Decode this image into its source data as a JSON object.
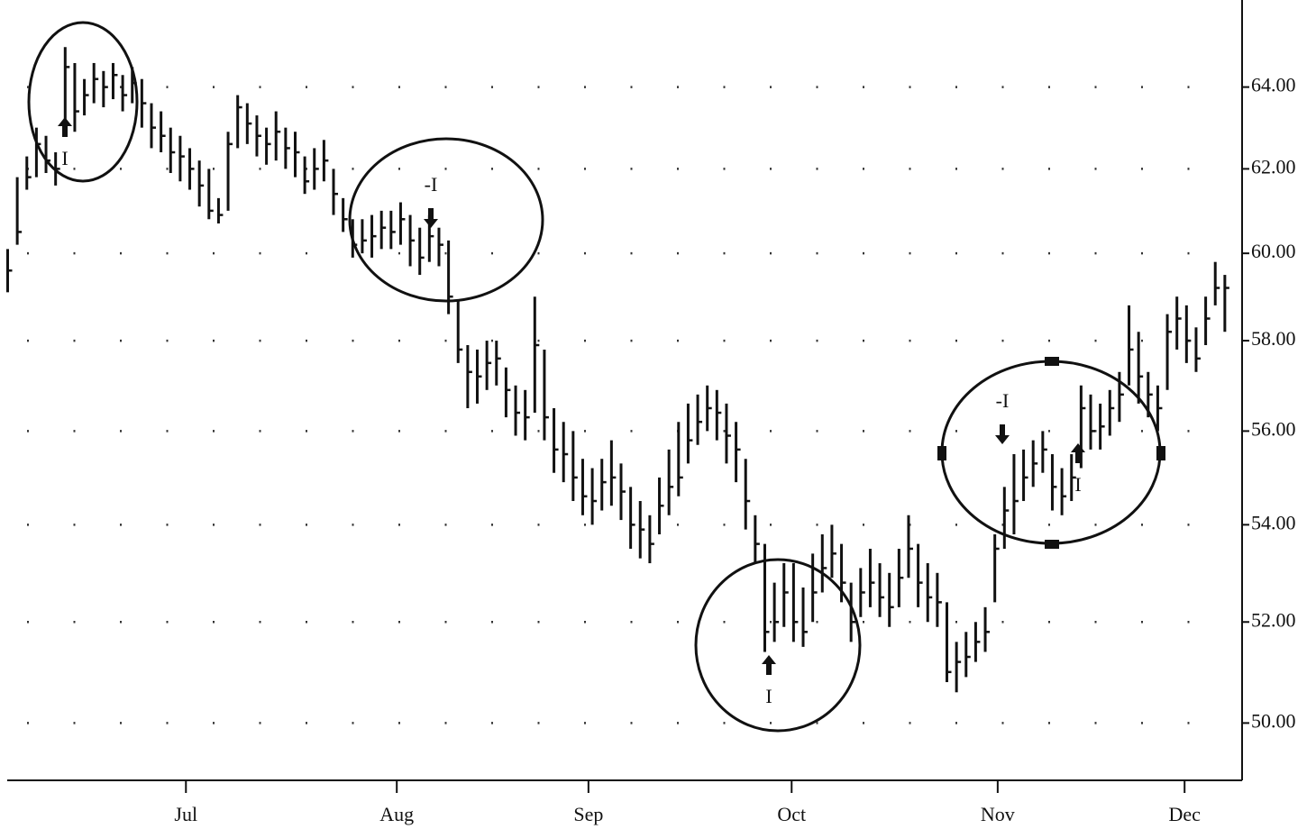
{
  "chart_data": {
    "type": "ohlc",
    "log_scale": true,
    "grid": "dotted",
    "color": "#111111",
    "ylim": [
      48.9,
      66.2
    ],
    "yticks": [
      {
        "value": 50,
        "label": "50.00"
      },
      {
        "value": 52,
        "label": "52.00"
      },
      {
        "value": 54,
        "label": "54.00"
      },
      {
        "value": 56,
        "label": "56.00"
      },
      {
        "value": 58,
        "label": "58.00"
      },
      {
        "value": 60,
        "label": "60.00"
      },
      {
        "value": 62,
        "label": "62.00"
      },
      {
        "value": 64,
        "label": "64.00"
      }
    ],
    "xlim": [
      -0.8,
      128.8
    ],
    "xticks": [
      {
        "value": 18.6,
        "label": "Jul"
      },
      {
        "value": 40.6,
        "label": "Aug"
      },
      {
        "value": 60.6,
        "label": "Sep"
      },
      {
        "value": 81.8,
        "label": "Oct"
      },
      {
        "value": 103.3,
        "label": "Nov"
      },
      {
        "value": 122.8,
        "label": "Dec"
      }
    ],
    "high": [
      60.1,
      61.8,
      62.3,
      63.0,
      62.8,
      62.4,
      65.0,
      64.6,
      64.2,
      64.6,
      64.4,
      64.6,
      64.3,
      64.5,
      64.2,
      63.6,
      63.4,
      63.0,
      62.8,
      62.5,
      62.2,
      62.0,
      61.3,
      62.9,
      63.8,
      63.6,
      63.3,
      63.0,
      63.4,
      63.0,
      62.9,
      62.3,
      62.5,
      62.7,
      62.0,
      61.3,
      60.8,
      60.8,
      60.9,
      61.0,
      61.0,
      61.2,
      60.9,
      60.6,
      60.9,
      60.6,
      60.3,
      58.9,
      57.9,
      57.8,
      58.0,
      58.0,
      57.4,
      57.0,
      56.9,
      59.0,
      57.8,
      56.5,
      56.2,
      56.0,
      55.4,
      55.2,
      55.4,
      55.8,
      55.3,
      54.8,
      54.5,
      54.2,
      55.0,
      55.6,
      56.2,
      56.6,
      56.8,
      57.0,
      56.9,
      56.6,
      56.2,
      55.4,
      54.2,
      53.6,
      52.8,
      53.2,
      53.2,
      52.7,
      53.4,
      53.8,
      54.0,
      53.6,
      52.8,
      53.1,
      53.5,
      53.2,
      53.0,
      53.5,
      54.2,
      53.6,
      53.2,
      53.0,
      52.4,
      51.6,
      51.8,
      52.0,
      52.3,
      53.8,
      54.8,
      55.5,
      55.6,
      55.8,
      56.0,
      55.5,
      55.2,
      55.5,
      57.0,
      56.8,
      56.6,
      56.9,
      57.3,
      58.8,
      58.2,
      57.3,
      57.0,
      58.6,
      59.0,
      58.8,
      58.3,
      59.0,
      59.8,
      59.5
    ],
    "low": [
      59.1,
      60.2,
      61.5,
      61.8,
      61.9,
      61.6,
      62.8,
      62.9,
      63.3,
      63.6,
      63.5,
      63.7,
      63.4,
      63.6,
      63.0,
      62.5,
      62.4,
      61.9,
      61.7,
      61.5,
      61.1,
      60.8,
      60.7,
      61.0,
      62.5,
      62.6,
      62.3,
      62.1,
      62.2,
      62.0,
      61.8,
      61.4,
      61.5,
      61.7,
      60.9,
      60.5,
      59.9,
      60.0,
      59.9,
      60.1,
      60.1,
      60.2,
      59.7,
      59.5,
      59.8,
      59.7,
      58.6,
      57.5,
      56.5,
      56.6,
      56.9,
      57.0,
      56.3,
      55.9,
      55.8,
      56.4,
      55.8,
      55.1,
      54.9,
      54.5,
      54.2,
      54.0,
      54.3,
      54.4,
      54.1,
      53.5,
      53.3,
      53.2,
      53.8,
      54.2,
      54.6,
      55.3,
      55.7,
      56.0,
      55.8,
      55.3,
      54.9,
      53.9,
      53.2,
      51.4,
      51.6,
      51.9,
      51.6,
      51.5,
      52.0,
      52.6,
      52.9,
      52.4,
      51.6,
      52.1,
      52.3,
      52.1,
      51.9,
      52.3,
      52.9,
      52.3,
      52.0,
      51.9,
      50.8,
      50.6,
      50.9,
      51.2,
      51.4,
      52.4,
      53.5,
      53.8,
      54.5,
      54.8,
      55.1,
      54.3,
      54.2,
      54.5,
      55.2,
      55.6,
      55.6,
      55.9,
      56.2,
      57.0,
      56.6,
      56.3,
      56.0,
      56.9,
      57.8,
      57.5,
      57.3,
      57.9,
      58.8,
      58.2
    ],
    "close": [
      59.6,
      60.5,
      61.8,
      62.6,
      62.2,
      62.0,
      64.5,
      63.4,
      63.8,
      64.2,
      64.0,
      64.3,
      63.8,
      64.1,
      63.6,
      63.0,
      62.8,
      62.4,
      62.3,
      62.0,
      61.6,
      61.0,
      60.9,
      62.6,
      63.5,
      63.1,
      62.8,
      62.6,
      62.9,
      62.5,
      62.4,
      61.7,
      62.0,
      62.2,
      61.4,
      60.8,
      60.2,
      60.3,
      60.4,
      60.6,
      60.5,
      60.8,
      60.3,
      59.9,
      60.4,
      60.2,
      59.0,
      57.8,
      57.3,
      57.2,
      57.5,
      57.6,
      56.9,
      56.4,
      56.3,
      57.9,
      56.3,
      55.6,
      55.5,
      55.0,
      54.6,
      54.5,
      54.9,
      55.0,
      54.7,
      54.0,
      53.9,
      53.6,
      54.4,
      54.8,
      55.0,
      55.8,
      56.2,
      56.5,
      56.4,
      55.9,
      55.6,
      54.5,
      53.6,
      51.8,
      52.0,
      52.6,
      52.0,
      51.8,
      52.6,
      53.1,
      53.4,
      52.8,
      52.0,
      52.6,
      52.8,
      52.5,
      52.3,
      52.9,
      53.5,
      52.8,
      52.5,
      52.4,
      51.0,
      51.2,
      51.3,
      51.6,
      51.8,
      53.5,
      54.3,
      54.5,
      55.0,
      55.3,
      55.6,
      54.8,
      54.6,
      55.0,
      56.5,
      56.0,
      56.1,
      56.5,
      56.8,
      57.8,
      57.2,
      56.8,
      56.5,
      58.2,
      58.5,
      58.0,
      57.6,
      58.5,
      59.2,
      59.2
    ],
    "annotations": [
      "I",
      "-I",
      "I",
      "-I",
      "I"
    ]
  }
}
